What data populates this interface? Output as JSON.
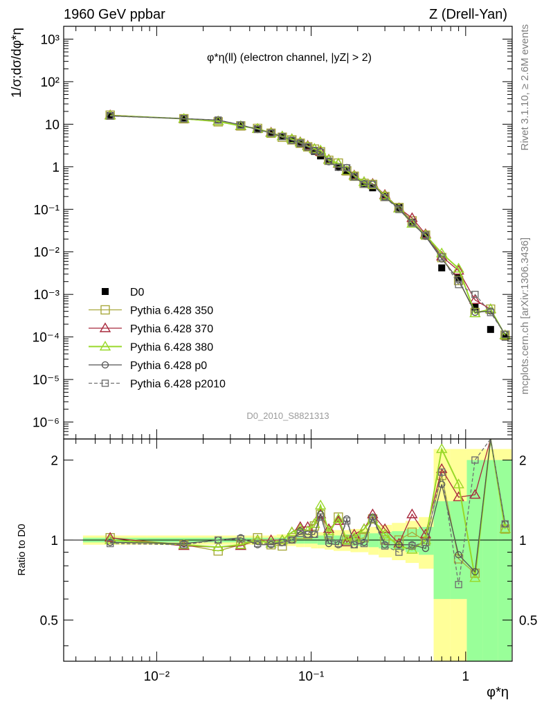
{
  "header": {
    "left": "1960 GeV ppbar",
    "right": "Z (Drell-Yan)"
  },
  "side_text": {
    "rivet": "Rivet 3.1.10, ≥ 2.6M events",
    "mcplots": "mcplots.cern.ch [arXiv:1306.3436]"
  },
  "colors": {
    "D0": "#000000",
    "p350": "#a8a83c",
    "p370": "#a8283c",
    "p380": "#98d828",
    "p0": "#505050",
    "p2010": "#707070",
    "band_yellow": "#ffff99",
    "band_green": "#99ff99"
  },
  "chart_data": {
    "type": "scatter",
    "title": "φ*η(ll) (electron channel, |yZ| > 2)",
    "watermark": "D0_2010_S8821313",
    "xlabel": "φ*η",
    "ylabel": "1/σ;dσ/dφ*η",
    "ratio_ylabel": "Ratio to D0",
    "x_scale": "log",
    "y_scale": "log",
    "xlim": [
      0.0025,
      2.0
    ],
    "ylim": [
      4e-07,
      2000
    ],
    "ratio_ylim": [
      0.35,
      2.4
    ],
    "x_ticks": [
      "10⁻²",
      "10⁻¹",
      "1"
    ],
    "y_ticks": [
      "10⁻⁶",
      "10⁻⁵",
      "10⁻⁴",
      "10⁻³",
      "10⁻²",
      "10⁻¹",
      "1",
      "10",
      "10²",
      "10³"
    ],
    "ratio_ticks": [
      "0.5",
      "1",
      "2"
    ],
    "x": [
      0.005,
      0.015,
      0.025,
      0.035,
      0.045,
      0.055,
      0.065,
      0.075,
      0.085,
      0.095,
      0.105,
      0.115,
      0.13,
      0.15,
      0.17,
      0.19,
      0.22,
      0.25,
      0.3,
      0.37,
      0.45,
      0.55,
      0.7,
      0.9,
      1.15,
      1.45,
      1.8
    ],
    "series": [
      {
        "name": "D0",
        "marker": "filled-square",
        "values": [
          16,
          14,
          12.5,
          9.5,
          7.8,
          6.4,
          5.2,
          4.2,
          3.4,
          2.8,
          2.3,
          1.8,
          1.35,
          1.0,
          0.8,
          0.6,
          0.4,
          0.32,
          0.2,
          0.11,
          0.05,
          0.025,
          0.0042,
          0.0025,
          0.0005,
          0.00015,
          0.0001
        ]
      },
      {
        "name": "Pythia 6.428 350",
        "marker": "open-square",
        "ratio": [
          1.02,
          0.96,
          0.91,
          0.96,
          1.02,
          0.96,
          0.95,
          1.02,
          1.05,
          1.05,
          1.13,
          1.25,
          1.05,
          1.22,
          1.0,
          1.0,
          1.02,
          1.2,
          1.0,
          1.0,
          1.07,
          0.99,
          1.75,
          0.85,
          0.75,
          3.0,
          1.1
        ]
      },
      {
        "name": "Pythia 6.428 370",
        "marker": "open-triangle",
        "ratio": [
          1.02,
          0.95,
          0.94,
          0.95,
          1.0,
          1.0,
          1.0,
          1.07,
          1.12,
          1.12,
          1.15,
          1.25,
          1.1,
          1.18,
          0.98,
          1.05,
          1.1,
          1.25,
          1.1,
          0.97,
          1.25,
          1.05,
          1.85,
          1.45,
          1.48,
          3.0,
          1.1
        ]
      },
      {
        "name": "Pythia 6.428 380",
        "marker": "open-triangle",
        "ratio": [
          1.0,
          0.96,
          0.94,
          0.96,
          1.0,
          0.97,
          1.0,
          1.07,
          1.1,
          1.08,
          1.15,
          1.35,
          1.08,
          1.2,
          1.0,
          1.02,
          1.1,
          1.2,
          1.05,
          0.95,
          0.92,
          1.0,
          2.2,
          1.62,
          0.72,
          3.0,
          1.1
        ]
      },
      {
        "name": "Pythia 6.428 p0",
        "marker": "open-circle",
        "ratio": [
          0.98,
          0.97,
          1.0,
          1.02,
          0.96,
          0.96,
          0.98,
          1.0,
          1.08,
          1.05,
          1.05,
          1.25,
          0.97,
          0.96,
          1.2,
          0.96,
          0.98,
          1.22,
          0.96,
          0.96,
          0.96,
          0.93,
          1.62,
          0.88,
          0.76,
          2.7,
          1.15
        ]
      },
      {
        "name": "Pythia 6.428 p2010",
        "marker": "open-square-dashed",
        "ratio": [
          0.97,
          0.96,
          1.0,
          1.01,
          0.97,
          0.97,
          0.98,
          1.0,
          1.06,
          1.05,
          1.05,
          1.22,
          1.0,
          0.97,
          1.18,
          0.96,
          0.97,
          1.2,
          0.95,
          0.9,
          0.95,
          0.98,
          1.8,
          0.68,
          2.0,
          2.5,
          1.15
        ]
      }
    ],
    "ratio_band": {
      "yellow_halfwidth": [
        0.04,
        0.04,
        0.04,
        0.04,
        0.04,
        0.04,
        0.05,
        0.05,
        0.06,
        0.06,
        0.07,
        0.07,
        0.08,
        0.09,
        0.09,
        0.1,
        0.1,
        0.12,
        0.14,
        0.16,
        0.18,
        0.22,
        1.2,
        1.2,
        1.2,
        1.2,
        1.2
      ],
      "green_halfwidth": [
        0.02,
        0.02,
        0.02,
        0.02,
        0.02,
        0.02,
        0.02,
        0.03,
        0.03,
        0.03,
        0.03,
        0.04,
        0.04,
        0.04,
        0.05,
        0.05,
        0.05,
        0.06,
        0.07,
        0.08,
        0.1,
        0.12,
        0.4,
        0.4,
        1.0,
        1.0,
        1.0
      ]
    }
  }
}
